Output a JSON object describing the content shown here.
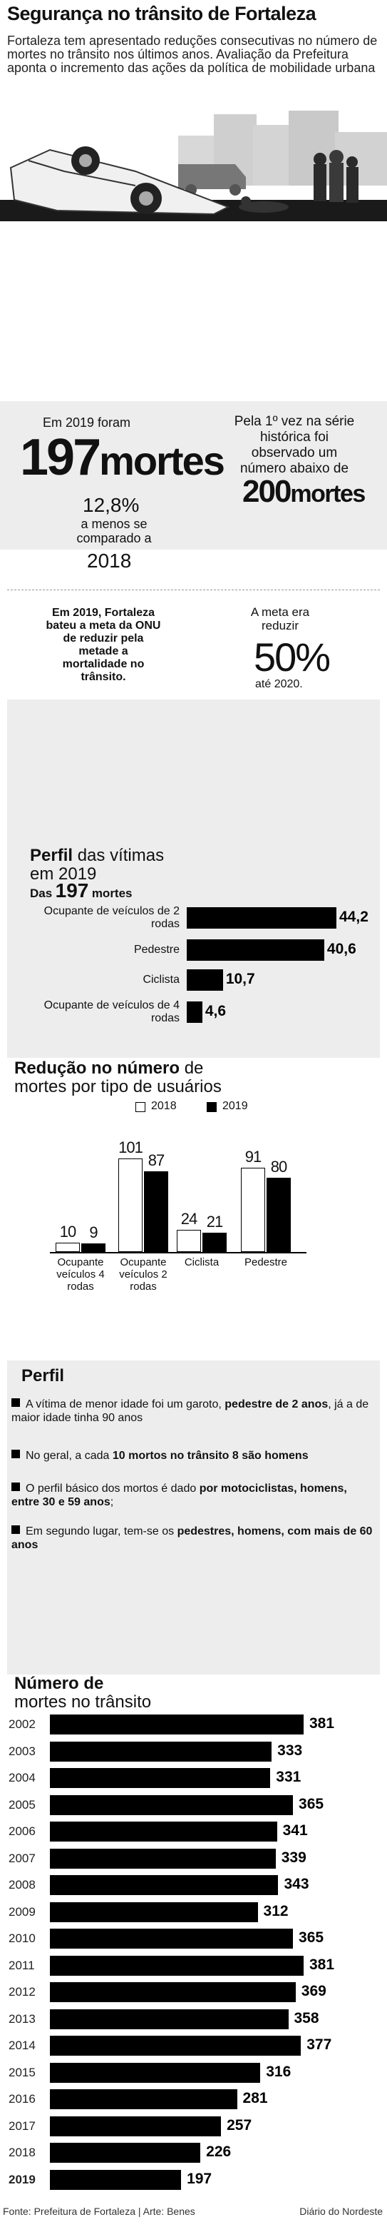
{
  "header": {
    "title": "Segurança no trânsito de Fortaleza",
    "intro": "Fortaleza tem apresentado reduções consecutivas no número de mortes no trânsito nos últimos anos. Avaliação da Prefeitura aponta o incremento das ações da política de mobilidade urbana"
  },
  "stats": {
    "left_pre": "Em 2019 foram",
    "left_num": "197",
    "left_unit": "mortes",
    "left_pct": "12,8%",
    "left_cmp": "a menos se comparado a",
    "left_year": "2018",
    "right_text": "Pela 1º vez na série histórica foi observado um número abaixo de",
    "right_num": "200",
    "right_unit": "mortes",
    "onu_text": "Em 2019, Fortaleza bateu a meta da ONU de reduzir pela metade a mortalidade no trânsito.",
    "meta_pre": "A meta era reduzir",
    "meta_pct": "50%",
    "meta_post": "até 2020."
  },
  "perfil_vitimas": {
    "title_bold": "Perfil",
    "title_rest": "das vítimas",
    "title_line2": "em 2019",
    "subtitle_pre": "Das",
    "subtitle_num": "197",
    "subtitle_post": "mortes"
  },
  "reducao": {
    "title_bold": "Redução no número",
    "title_rest": "de",
    "title_line2": "mortes por tipo de usuários"
  },
  "perfil": {
    "title": "Perfil",
    "items": [
      {
        "pre": "A vítima de menor idade foi um garoto, ",
        "bold": "pedestre de 2 anos",
        "post": ", já a de maior idade tinha 90 anos"
      },
      {
        "pre": "No geral, a cada ",
        "bold": "10 mortos no trânsito 8 são homens",
        "post": ""
      },
      {
        "pre": "O perfil básico dos mortos é dado ",
        "bold": "por motociclistas, homens, entre 30 e 59 anos",
        "post": ";"
      },
      {
        "pre": "Em segundo lugar, tem-se os ",
        "bold": "pedestres, homens, com mais de 60 anos",
        "post": ""
      }
    ]
  },
  "numero_mortes": {
    "title_bold": "Número de",
    "title_rest": "mortes no trânsito"
  },
  "footer": {
    "source": "Fonte: Prefeitura de Fortaleza | Arte: Benes",
    "brand": "Diário do Nordeste"
  },
  "chart_data": [
    {
      "type": "bar",
      "orientation": "horizontal",
      "categories": [
        "Ocupante de veículos de 2 rodas",
        "Pedestre",
        "Ciclista",
        "Ocupante de veículos de 4 rodas"
      ],
      "values": [
        44.2,
        40.6,
        10.7,
        4.6
      ],
      "value_labels": [
        "44,2",
        "40,6",
        "10,7",
        "4,6"
      ]
    },
    {
      "type": "bar",
      "orientation": "vertical",
      "categories": [
        "Ocupante veículos 4 rodas",
        "Ocupante veículos 2 rodas",
        "Ciclista",
        "Pedestre"
      ],
      "series": [
        {
          "name": "2018",
          "values": [
            10,
            101,
            24,
            91
          ],
          "color": "#ffffff"
        },
        {
          "name": "2019",
          "values": [
            9,
            87,
            21,
            80
          ],
          "color": "#000000"
        }
      ],
      "legend": "top-right"
    },
    {
      "type": "bar",
      "orientation": "horizontal",
      "categories": [
        "2002",
        "2003",
        "2004",
        "2005",
        "2006",
        "2007",
        "2008",
        "2009",
        "2010",
        "2011",
        "2012",
        "2013",
        "2014",
        "2015",
        "2016",
        "2017",
        "2018",
        "2019"
      ],
      "values": [
        381,
        333,
        331,
        365,
        341,
        339,
        343,
        312,
        365,
        381,
        369,
        358,
        377,
        316,
        281,
        257,
        226,
        197
      ]
    }
  ]
}
